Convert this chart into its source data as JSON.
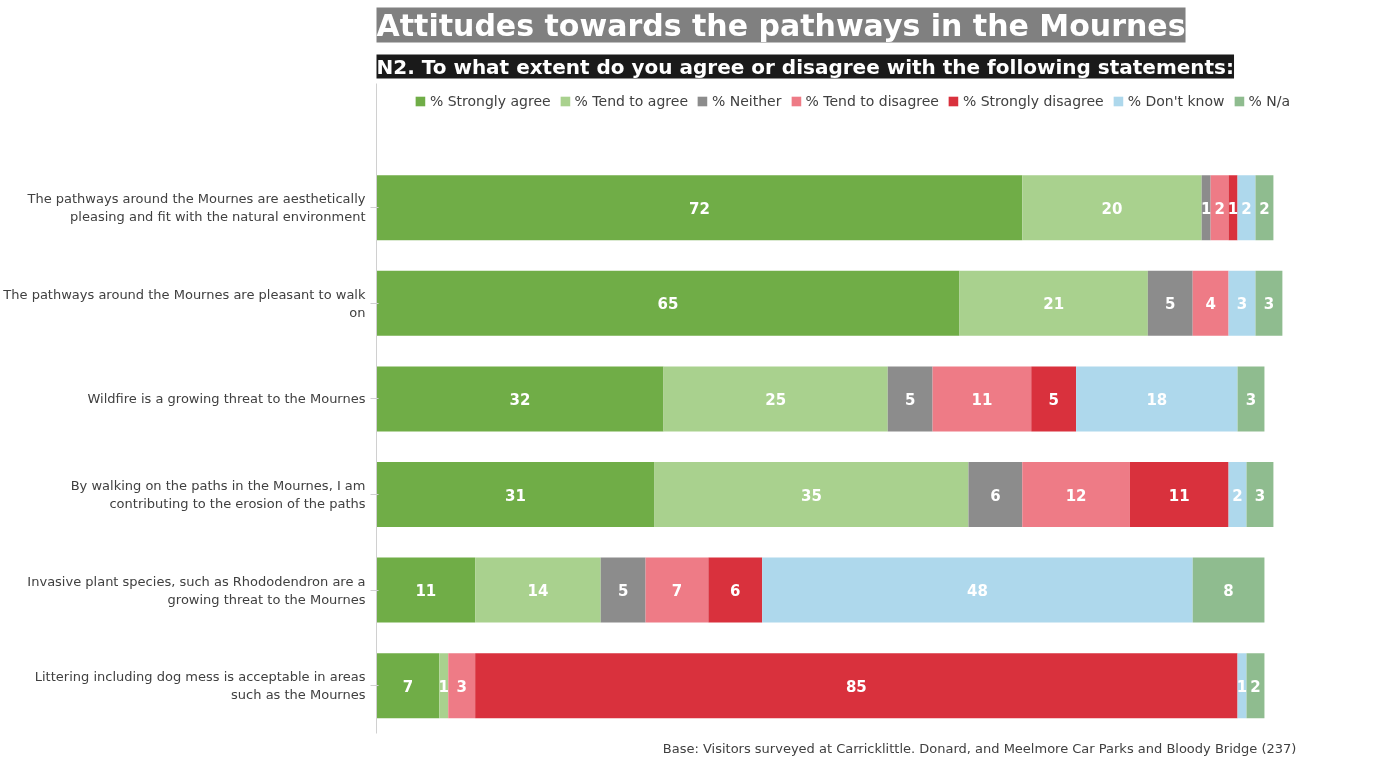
{
  "chart_data": {
    "type": "bar",
    "orientation": "horizontal",
    "stacked": true,
    "data_labels": true,
    "grid": false,
    "legend": "top",
    "title": "Attitudes towards the pathways in the Mournes",
    "subtitle": "N2. To what extent do you agree or disagree with the following statements:",
    "categories": [
      "The pathways around the Mournes are aesthetically pleasing and fit with the natural environment",
      "The pathways around the Mournes are pleasant to walk on",
      "Wildfire is a growing threat to the Mournes",
      "By walking on the paths in the Mournes, I am contributing to the erosion of the paths",
      "Invasive plant species, such as Rhododendron are a growing threat to the Mournes",
      "Littering including dog mess is acceptable in areas such as the Mournes"
    ],
    "series": [
      {
        "name": "% Strongly agree",
        "color": "#70ad47",
        "values": [
          72,
          65,
          32,
          31,
          11,
          7
        ]
      },
      {
        "name": "% Tend to agree",
        "color": "#a9d18e",
        "values": [
          20,
          21,
          25,
          35,
          14,
          1
        ]
      },
      {
        "name": "% Neither",
        "color": "#8c8c8c",
        "values": [
          1,
          5,
          5,
          6,
          5,
          null
        ]
      },
      {
        "name": "% Tend to disagree",
        "color": "#ee7b86",
        "values": [
          2,
          4,
          11,
          12,
          7,
          3
        ]
      },
      {
        "name": "% Strongly disagree",
        "color": "#d9313d",
        "values": [
          1,
          null,
          5,
          11,
          6,
          85
        ]
      },
      {
        "name": "% Don't know",
        "color": "#aed8ec",
        "values": [
          2,
          3,
          18,
          2,
          48,
          1
        ]
      },
      {
        "name": "% N/a",
        "color": "#8fbc8f",
        "values": [
          2,
          3,
          3,
          3,
          8,
          2
        ]
      }
    ],
    "annotations": [
      "Base: Visitors surveyed at Carricklittle.  Donard, and Meelmore Car Parks and Bloody Bridge (237)"
    ]
  }
}
